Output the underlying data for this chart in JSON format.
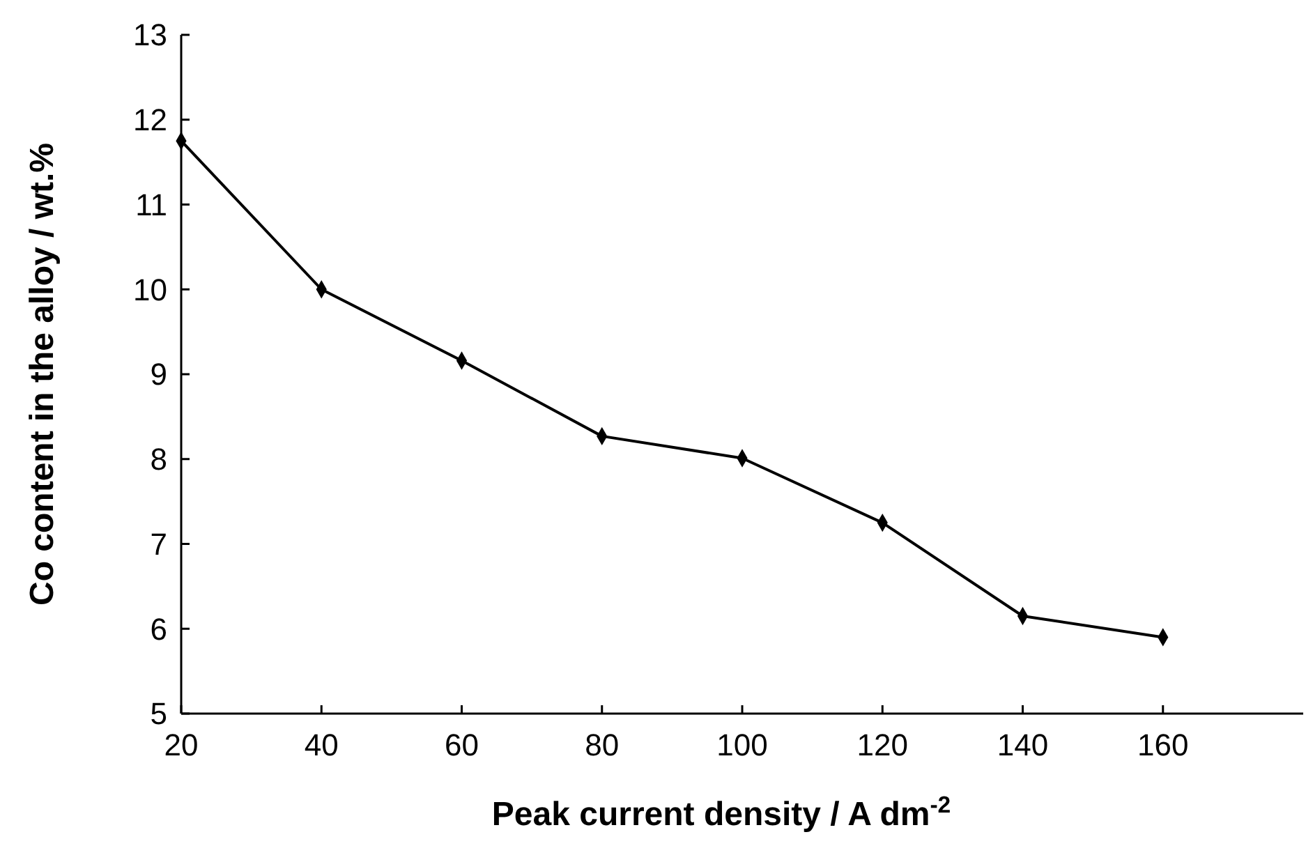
{
  "chart_data": {
    "type": "line",
    "xlabel": "Peak current density / A dm$^{-2}$",
    "ylabel": "Co content in the alloy / wt.%",
    "x": [
      20,
      40,
      60,
      80,
      100,
      120,
      140,
      160
    ],
    "series": [
      {
        "color": "#000000",
        "values": [
          11.75,
          10.0,
          9.16,
          8.27,
          8.01,
          7.25,
          6.15,
          5.9
        ]
      }
    ],
    "xlim": [
      20,
      180
    ],
    "xticks": [
      20,
      40,
      60,
      80,
      100,
      120,
      140,
      160
    ],
    "ylim": [
      5,
      13
    ],
    "yticks": [
      5,
      6,
      7,
      8,
      9,
      10,
      11,
      12,
      13
    ],
    "marker": "diamond",
    "line_style": "solid"
  }
}
